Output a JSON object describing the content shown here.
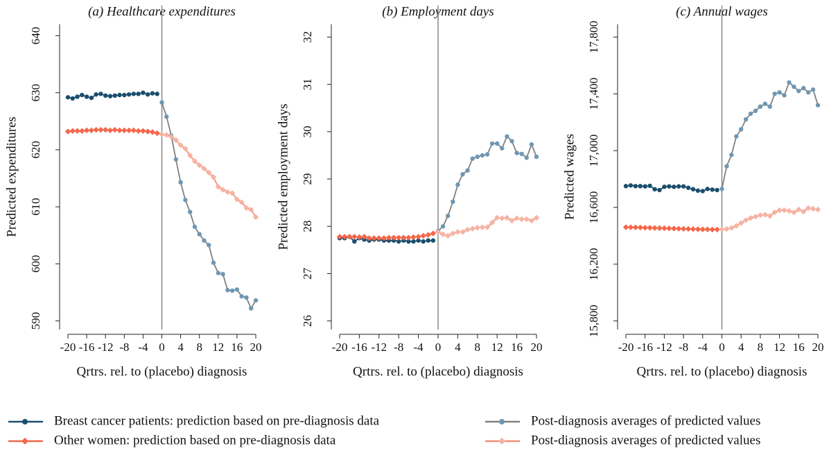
{
  "chart_data": [
    {
      "type": "line",
      "title": "(a) Healthcare expenditures",
      "ylabel": "Predicted expenditures",
      "xlabel": "Qrtrs. rel. to (placebo) diagnosis",
      "xlim": [
        -20,
        20
      ],
      "xticks": [
        -20,
        -16,
        -12,
        -8,
        -4,
        0,
        4,
        8,
        12,
        16,
        20
      ],
      "ylim": [
        588.5,
        642
      ],
      "yticks": [
        590,
        600,
        610,
        620,
        630,
        640
      ],
      "vline": 0,
      "series": [
        {
          "name": "Breast cancer patients: prediction based on pre-diagnosis data",
          "color": "#1a4e6e",
          "marker_color": "#1a4e6e",
          "marker": "circle",
          "x": [
            -20,
            -19,
            -18,
            -17,
            -16,
            -15,
            -14,
            -13,
            -12,
            -11,
            -10,
            -9,
            -8,
            -7,
            -6,
            -5,
            -4,
            -3,
            -2,
            -1
          ],
          "values": [
            629.2,
            629.0,
            629.3,
            629.6,
            629.3,
            629.1,
            629.7,
            629.8,
            629.5,
            629.4,
            629.5,
            629.6,
            629.6,
            629.7,
            629.8,
            629.8,
            630.0,
            629.7,
            629.9,
            629.8
          ]
        },
        {
          "name": "Other women: prediction based on pre-diagnosis data",
          "color": "#f4674a",
          "marker_color": "#f4674a",
          "marker": "diamond",
          "x": [
            -20,
            -19,
            -18,
            -17,
            -16,
            -15,
            -14,
            -13,
            -12,
            -11,
            -10,
            -9,
            -8,
            -7,
            -6,
            -5,
            -4,
            -3,
            -2,
            -1
          ],
          "values": [
            623.2,
            623.3,
            623.3,
            623.3,
            623.4,
            623.4,
            623.5,
            623.5,
            623.5,
            623.4,
            623.5,
            623.4,
            623.4,
            623.4,
            623.4,
            623.3,
            623.3,
            623.2,
            623.1,
            622.9
          ]
        },
        {
          "name": "Post-diagnosis averages of predicted values",
          "color": "#808080",
          "marker_color": "#6f97b3",
          "marker": "circle",
          "x": [
            0,
            1,
            2,
            3,
            4,
            5,
            6,
            7,
            8,
            9,
            10,
            11,
            12,
            13,
            14,
            15,
            16,
            17,
            18,
            19,
            20
          ],
          "values": [
            628.3,
            625.8,
            622.5,
            618.3,
            614.3,
            611.2,
            609.1,
            606.5,
            605.2,
            604.1,
            603.3,
            600.2,
            598.4,
            598.2,
            595.4,
            595.3,
            595.5,
            594.3,
            594.1,
            592.2,
            593.6
          ]
        },
        {
          "name": "Post-diagnosis averages of predicted values",
          "color": "#f08f78",
          "marker_color": "#f6b3a3",
          "marker": "diamond",
          "x": [
            0,
            1,
            2,
            3,
            4,
            5,
            6,
            7,
            8,
            9,
            10,
            11,
            12,
            13,
            14,
            15,
            16,
            17,
            18,
            19,
            20
          ],
          "values": [
            622.7,
            622.6,
            622.3,
            621.7,
            620.8,
            620.2,
            619.0,
            618.0,
            617.3,
            616.7,
            616.0,
            615.2,
            613.5,
            613.0,
            612.6,
            612.4,
            611.3,
            610.8,
            609.8,
            609.5,
            608.2
          ]
        }
      ]
    },
    {
      "type": "line",
      "title": "(b) Employment days",
      "ylabel": "Predicted employment days",
      "xlabel": "Qrtrs. rel. to (placebo) diagnosis",
      "xlim": [
        -20,
        20
      ],
      "xticks": [
        -20,
        -16,
        -12,
        -8,
        -4,
        0,
        4,
        8,
        12,
        16,
        20
      ],
      "ylim": [
        25.82,
        32.27
      ],
      "yticks": [
        26,
        27,
        28,
        29,
        30,
        31,
        32
      ],
      "vline": 0,
      "series": [
        {
          "color": "#1a4e6e",
          "marker_color": "#1a4e6e",
          "marker": "circle",
          "x": [
            -20,
            -19,
            -18,
            -17,
            -16,
            -15,
            -14,
            -13,
            -12,
            -11,
            -10,
            -9,
            -8,
            -7,
            -6,
            -5,
            -4,
            -3,
            -2,
            -1
          ],
          "values": [
            27.75,
            27.75,
            27.78,
            27.68,
            27.75,
            27.72,
            27.7,
            27.72,
            27.72,
            27.7,
            27.7,
            27.7,
            27.68,
            27.7,
            27.68,
            27.68,
            27.7,
            27.68,
            27.7,
            27.7
          ]
        },
        {
          "color": "#f4674a",
          "marker_color": "#f4674a",
          "marker": "diamond",
          "x": [
            -20,
            -19,
            -18,
            -17,
            -16,
            -15,
            -14,
            -13,
            -12,
            -11,
            -10,
            -9,
            -8,
            -7,
            -6,
            -5,
            -4,
            -3,
            -2,
            -1
          ],
          "values": [
            27.78,
            27.78,
            27.78,
            27.78,
            27.77,
            27.78,
            27.75,
            27.75,
            27.75,
            27.75,
            27.76,
            27.76,
            27.76,
            27.76,
            27.76,
            27.77,
            27.78,
            27.8,
            27.82,
            27.85
          ]
        },
        {
          "color": "#808080",
          "marker_color": "#6f97b3",
          "marker": "circle",
          "x": [
            0,
            1,
            2,
            3,
            4,
            5,
            6,
            7,
            8,
            9,
            10,
            11,
            12,
            13,
            14,
            15,
            16,
            17,
            18,
            19,
            20
          ],
          "values": [
            27.9,
            28.0,
            28.22,
            28.52,
            28.88,
            29.1,
            29.18,
            29.43,
            29.47,
            29.5,
            29.52,
            29.75,
            29.75,
            29.65,
            29.9,
            29.8,
            29.55,
            29.53,
            29.45,
            29.73,
            29.47
          ]
        },
        {
          "color": "#f08f78",
          "marker_color": "#f6b3a3",
          "marker": "diamond",
          "x": [
            0,
            1,
            2,
            3,
            4,
            5,
            6,
            7,
            8,
            9,
            10,
            11,
            12,
            13,
            14,
            15,
            16,
            17,
            18,
            19,
            20
          ],
          "values": [
            27.88,
            27.83,
            27.8,
            27.85,
            27.88,
            27.88,
            27.93,
            27.95,
            27.97,
            27.98,
            27.98,
            28.08,
            28.18,
            28.17,
            28.18,
            28.12,
            28.17,
            28.15,
            28.15,
            28.12,
            28.18
          ]
        }
      ]
    },
    {
      "type": "line",
      "title": "(c) Annual wages",
      "ylabel": "Predicted wages",
      "xlabel": "Qrtrs. rel. to (placebo) diagnosis",
      "xlim": [
        -20,
        20
      ],
      "xticks": [
        -20,
        -16,
        -12,
        -8,
        -4,
        0,
        4,
        8,
        12,
        16,
        20
      ],
      "ylim": [
        15740,
        17890
      ],
      "yticks": [
        {
          "value": 15800,
          "label": "15,800"
        },
        {
          "value": 16200,
          "label": "16,200"
        },
        {
          "value": 16600,
          "label": "16,600"
        },
        {
          "value": 17000,
          "label": "17,000"
        },
        {
          "value": 17400,
          "label": "17,400"
        },
        {
          "value": 17800,
          "label": "17,800"
        }
      ],
      "vline": 0,
      "series": [
        {
          "color": "#1a4e6e",
          "marker_color": "#1a4e6e",
          "marker": "circle",
          "x": [
            -20,
            -19,
            -18,
            -17,
            -16,
            -15,
            -14,
            -13,
            -12,
            -11,
            -10,
            -9,
            -8,
            -7,
            -6,
            -5,
            -4,
            -3,
            -2,
            -1
          ],
          "values": [
            16750,
            16755,
            16750,
            16750,
            16748,
            16752,
            16728,
            16722,
            16745,
            16748,
            16745,
            16748,
            16748,
            16738,
            16728,
            16718,
            16715,
            16730,
            16725,
            16722
          ]
        },
        {
          "color": "#f4674a",
          "marker_color": "#f4674a",
          "marker": "diamond",
          "x": [
            -20,
            -19,
            -18,
            -17,
            -16,
            -15,
            -14,
            -13,
            -12,
            -11,
            -10,
            -9,
            -8,
            -7,
            -6,
            -5,
            -4,
            -3,
            -2,
            -1
          ],
          "values": [
            16460,
            16460,
            16459,
            16458,
            16457,
            16456,
            16455,
            16454,
            16453,
            16452,
            16451,
            16450,
            16449,
            16448,
            16447,
            16446,
            16445,
            16445,
            16444,
            16444
          ]
        },
        {
          "color": "#808080",
          "marker_color": "#6f97b3",
          "marker": "circle",
          "x": [
            0,
            1,
            2,
            3,
            4,
            5,
            6,
            7,
            8,
            9,
            10,
            11,
            12,
            13,
            14,
            15,
            16,
            17,
            18,
            19,
            20
          ],
          "values": [
            16730,
            16890,
            16970,
            17100,
            17150,
            17220,
            17260,
            17280,
            17310,
            17330,
            17310,
            17400,
            17410,
            17390,
            17480,
            17450,
            17420,
            17440,
            17410,
            17430,
            17320
          ]
        },
        {
          "color": "#f08f78",
          "marker_color": "#f6b3a3",
          "marker": "diamond",
          "x": [
            0,
            1,
            2,
            3,
            4,
            5,
            6,
            7,
            8,
            9,
            10,
            11,
            12,
            13,
            14,
            15,
            16,
            17,
            18,
            19,
            20
          ],
          "values": [
            16445,
            16448,
            16455,
            16470,
            16490,
            16510,
            16525,
            16535,
            16545,
            16548,
            16540,
            16565,
            16580,
            16580,
            16575,
            16565,
            16585,
            16570,
            16595,
            16590,
            16585
          ]
        }
      ]
    }
  ]
}
